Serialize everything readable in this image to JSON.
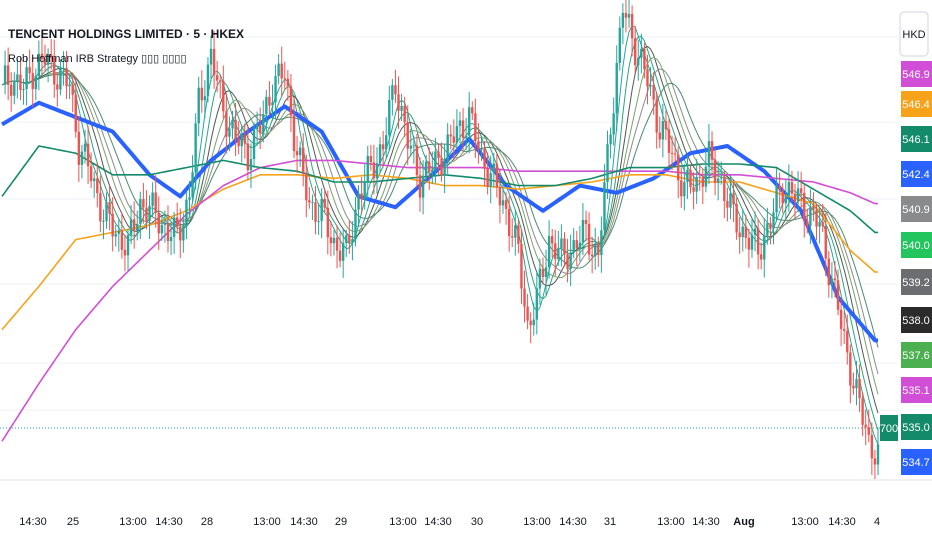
{
  "header": {
    "title": "TENCENT HOLDINGS LIMITED · 5 · HKEX",
    "study": "Rob Hoffman IRB Strategy ▯▯▯ ▯▯▯▯"
  },
  "currency_button": {
    "label": "HKD"
  },
  "colors": {
    "up_candle": "#26a69a",
    "down_candle": "#ef5350",
    "ema_fast": "#2962ff",
    "sma_orange": "#f7a21b",
    "sma_magenta": "#d14ed6",
    "ema_green": "#138a6a",
    "ribbon_dark": "#555555",
    "ribbon_light": "#26a69a"
  },
  "chart_data": {
    "type": "line",
    "title": "TENCENT HOLDINGS LIMITED · 5 · HKEX",
    "xlabel": "",
    "ylabel": "",
    "ylim": [
      534.4,
      546.9
    ],
    "x_tick_labels": [
      "14:30",
      "25",
      "13:00",
      "14:30",
      "28",
      "13:00",
      "14:30",
      "29",
      "13:00",
      "14:30",
      "30",
      "13:00",
      "14:30",
      "31",
      "13:00",
      "14:30",
      "Aug",
      "13:00",
      "14:30",
      "4"
    ],
    "bold_x_ticks": [
      "Aug"
    ],
    "grid": true,
    "series": [
      {
        "kind": "candles",
        "description": "price",
        "close_path": [
          [
            0,
            545.1
          ],
          [
            3,
            545.3
          ],
          [
            7,
            545.0
          ],
          [
            10,
            545.5
          ],
          [
            14,
            545.8
          ],
          [
            18,
            545.4
          ],
          [
            22,
            545.1
          ],
          [
            25,
            543.4
          ],
          [
            29,
            542.6
          ],
          [
            33,
            541.5
          ],
          [
            37,
            541.0
          ],
          [
            41,
            540.6
          ],
          [
            45,
            541.8
          ],
          [
            50,
            541.5
          ],
          [
            54,
            541.0
          ],
          [
            57,
            540.9
          ],
          [
            61,
            542.0
          ],
          [
            64,
            544.6
          ],
          [
            68,
            545.9
          ],
          [
            72,
            544.4
          ],
          [
            76,
            543.6
          ],
          [
            80,
            543.2
          ],
          [
            84,
            543.9
          ],
          [
            88,
            545.1
          ],
          [
            92,
            545.4
          ],
          [
            96,
            543.2
          ],
          [
            100,
            541.8
          ],
          [
            104,
            541.5
          ],
          [
            108,
            540.7
          ],
          [
            112,
            540.4
          ],
          [
            116,
            542.0
          ],
          [
            120,
            542.8
          ],
          [
            124,
            543.4
          ],
          [
            128,
            545.2
          ],
          [
            132,
            543.5
          ],
          [
            136,
            542.5
          ],
          [
            140,
            542.8
          ],
          [
            144,
            543.2
          ],
          [
            148,
            543.8
          ],
          [
            152,
            544.2
          ],
          [
            156,
            543.1
          ],
          [
            160,
            542.4
          ],
          [
            164,
            541.6
          ],
          [
            168,
            540.4
          ],
          [
            171,
            538.4
          ],
          [
            174,
            539.1
          ],
          [
            178,
            540.8
          ],
          [
            182,
            540.3
          ],
          [
            186,
            540.6
          ],
          [
            190,
            541.0
          ],
          [
            194,
            540.3
          ],
          [
            198,
            544.0
          ],
          [
            202,
            547.2
          ],
          [
            206,
            546.2
          ],
          [
            210,
            545.2
          ],
          [
            214,
            543.9
          ],
          [
            218,
            543.2
          ],
          [
            222,
            542.2
          ],
          [
            226,
            542.4
          ],
          [
            230,
            543.0
          ],
          [
            234,
            542.4
          ],
          [
            238,
            541.4
          ],
          [
            242,
            540.9
          ],
          [
            246,
            540.5
          ],
          [
            250,
            541.3
          ],
          [
            254,
            542.3
          ],
          [
            258,
            542.0
          ],
          [
            262,
            541.6
          ],
          [
            266,
            541.2
          ],
          [
            270,
            539.7
          ],
          [
            274,
            538.0
          ],
          [
            278,
            536.5
          ],
          [
            282,
            535.2
          ],
          [
            285,
            534.8
          ]
        ]
      },
      {
        "name": "",
        "color": "#2962ff",
        "values": [
          [
            0,
            544.0
          ],
          [
            12,
            544.6
          ],
          [
            24,
            544.2
          ],
          [
            36,
            543.8
          ],
          [
            48,
            542.6
          ],
          [
            58,
            542.0
          ],
          [
            68,
            543.0
          ],
          [
            80,
            543.8
          ],
          [
            92,
            544.5
          ],
          [
            104,
            543.8
          ],
          [
            116,
            542.0
          ],
          [
            128,
            541.7
          ],
          [
            140,
            542.6
          ],
          [
            152,
            543.6
          ],
          [
            164,
            542.3
          ],
          [
            176,
            541.6
          ],
          [
            188,
            542.3
          ],
          [
            200,
            542.1
          ],
          [
            212,
            542.5
          ],
          [
            224,
            543.2
          ],
          [
            236,
            543.4
          ],
          [
            248,
            542.7
          ],
          [
            260,
            541.6
          ],
          [
            272,
            539.2
          ],
          [
            284,
            538.0
          ]
        ]
      },
      {
        "name": "",
        "color": "#f7a21b",
        "values": [
          [
            0,
            538.3
          ],
          [
            12,
            539.5
          ],
          [
            24,
            540.8
          ],
          [
            36,
            541.0
          ],
          [
            48,
            541.2
          ],
          [
            60,
            541.6
          ],
          [
            72,
            542.2
          ],
          [
            84,
            542.6
          ],
          [
            96,
            542.6
          ],
          [
            108,
            542.5
          ],
          [
            120,
            542.6
          ],
          [
            132,
            542.5
          ],
          [
            144,
            542.3
          ],
          [
            156,
            542.3
          ],
          [
            168,
            542.2
          ],
          [
            180,
            542.3
          ],
          [
            192,
            542.4
          ],
          [
            204,
            542.6
          ],
          [
            216,
            542.6
          ],
          [
            228,
            542.4
          ],
          [
            240,
            542.4
          ],
          [
            252,
            542.1
          ],
          [
            264,
            541.8
          ],
          [
            276,
            540.5
          ],
          [
            284,
            539.9
          ]
        ]
      },
      {
        "name": "",
        "color": "#d14ed6",
        "values": [
          [
            0,
            535.2
          ],
          [
            12,
            536.8
          ],
          [
            24,
            538.3
          ],
          [
            36,
            539.5
          ],
          [
            48,
            540.5
          ],
          [
            60,
            541.5
          ],
          [
            72,
            542.3
          ],
          [
            84,
            542.8
          ],
          [
            96,
            543.0
          ],
          [
            108,
            543.0
          ],
          [
            120,
            542.9
          ],
          [
            132,
            542.8
          ],
          [
            144,
            542.8
          ],
          [
            156,
            542.8
          ],
          [
            168,
            542.7
          ],
          [
            180,
            542.7
          ],
          [
            192,
            542.7
          ],
          [
            204,
            542.7
          ],
          [
            216,
            542.7
          ],
          [
            228,
            542.6
          ],
          [
            240,
            542.6
          ],
          [
            252,
            542.5
          ],
          [
            264,
            542.4
          ],
          [
            276,
            542.1
          ],
          [
            284,
            541.8
          ]
        ]
      },
      {
        "name": "",
        "color": "#138a6a",
        "values": [
          [
            0,
            542.0
          ],
          [
            12,
            543.4
          ],
          [
            24,
            543.2
          ],
          [
            36,
            542.6
          ],
          [
            48,
            542.6
          ],
          [
            60,
            542.8
          ],
          [
            72,
            543.0
          ],
          [
            84,
            542.8
          ],
          [
            96,
            542.7
          ],
          [
            108,
            542.4
          ],
          [
            120,
            542.4
          ],
          [
            132,
            542.5
          ],
          [
            144,
            542.6
          ],
          [
            156,
            542.5
          ],
          [
            168,
            542.3
          ],
          [
            180,
            542.3
          ],
          [
            192,
            542.5
          ],
          [
            204,
            542.8
          ],
          [
            216,
            542.8
          ],
          [
            228,
            542.9
          ],
          [
            240,
            542.9
          ],
          [
            252,
            542.8
          ],
          [
            264,
            542.2
          ],
          [
            276,
            541.6
          ],
          [
            284,
            541.0
          ]
        ]
      }
    ],
    "price_axis_tags": [
      {
        "value": "546.9",
        "color": "#d14ed6",
        "partial": true
      },
      {
        "value": "546.4",
        "color": "#f7a21b"
      },
      {
        "value": "546.1",
        "color": "#138a6a"
      },
      {
        "value": "542.4",
        "color": "#2962ff"
      },
      {
        "value": "540.9",
        "color": "#888a8c"
      },
      {
        "value": "540.0",
        "color": "#22c55e"
      },
      {
        "value": "539.2",
        "color": "#6b6d70"
      },
      {
        "value": "538.0",
        "color": "#2b2b2b"
      },
      {
        "value": "537.6",
        "color": "#4caf50"
      },
      {
        "value": "535.1",
        "color": "#d14ed6"
      },
      {
        "value": "535.0",
        "color": "#138a6a"
      },
      {
        "value": "534.7",
        "color": "#2962ff"
      }
    ],
    "last_price_badge": "700"
  }
}
